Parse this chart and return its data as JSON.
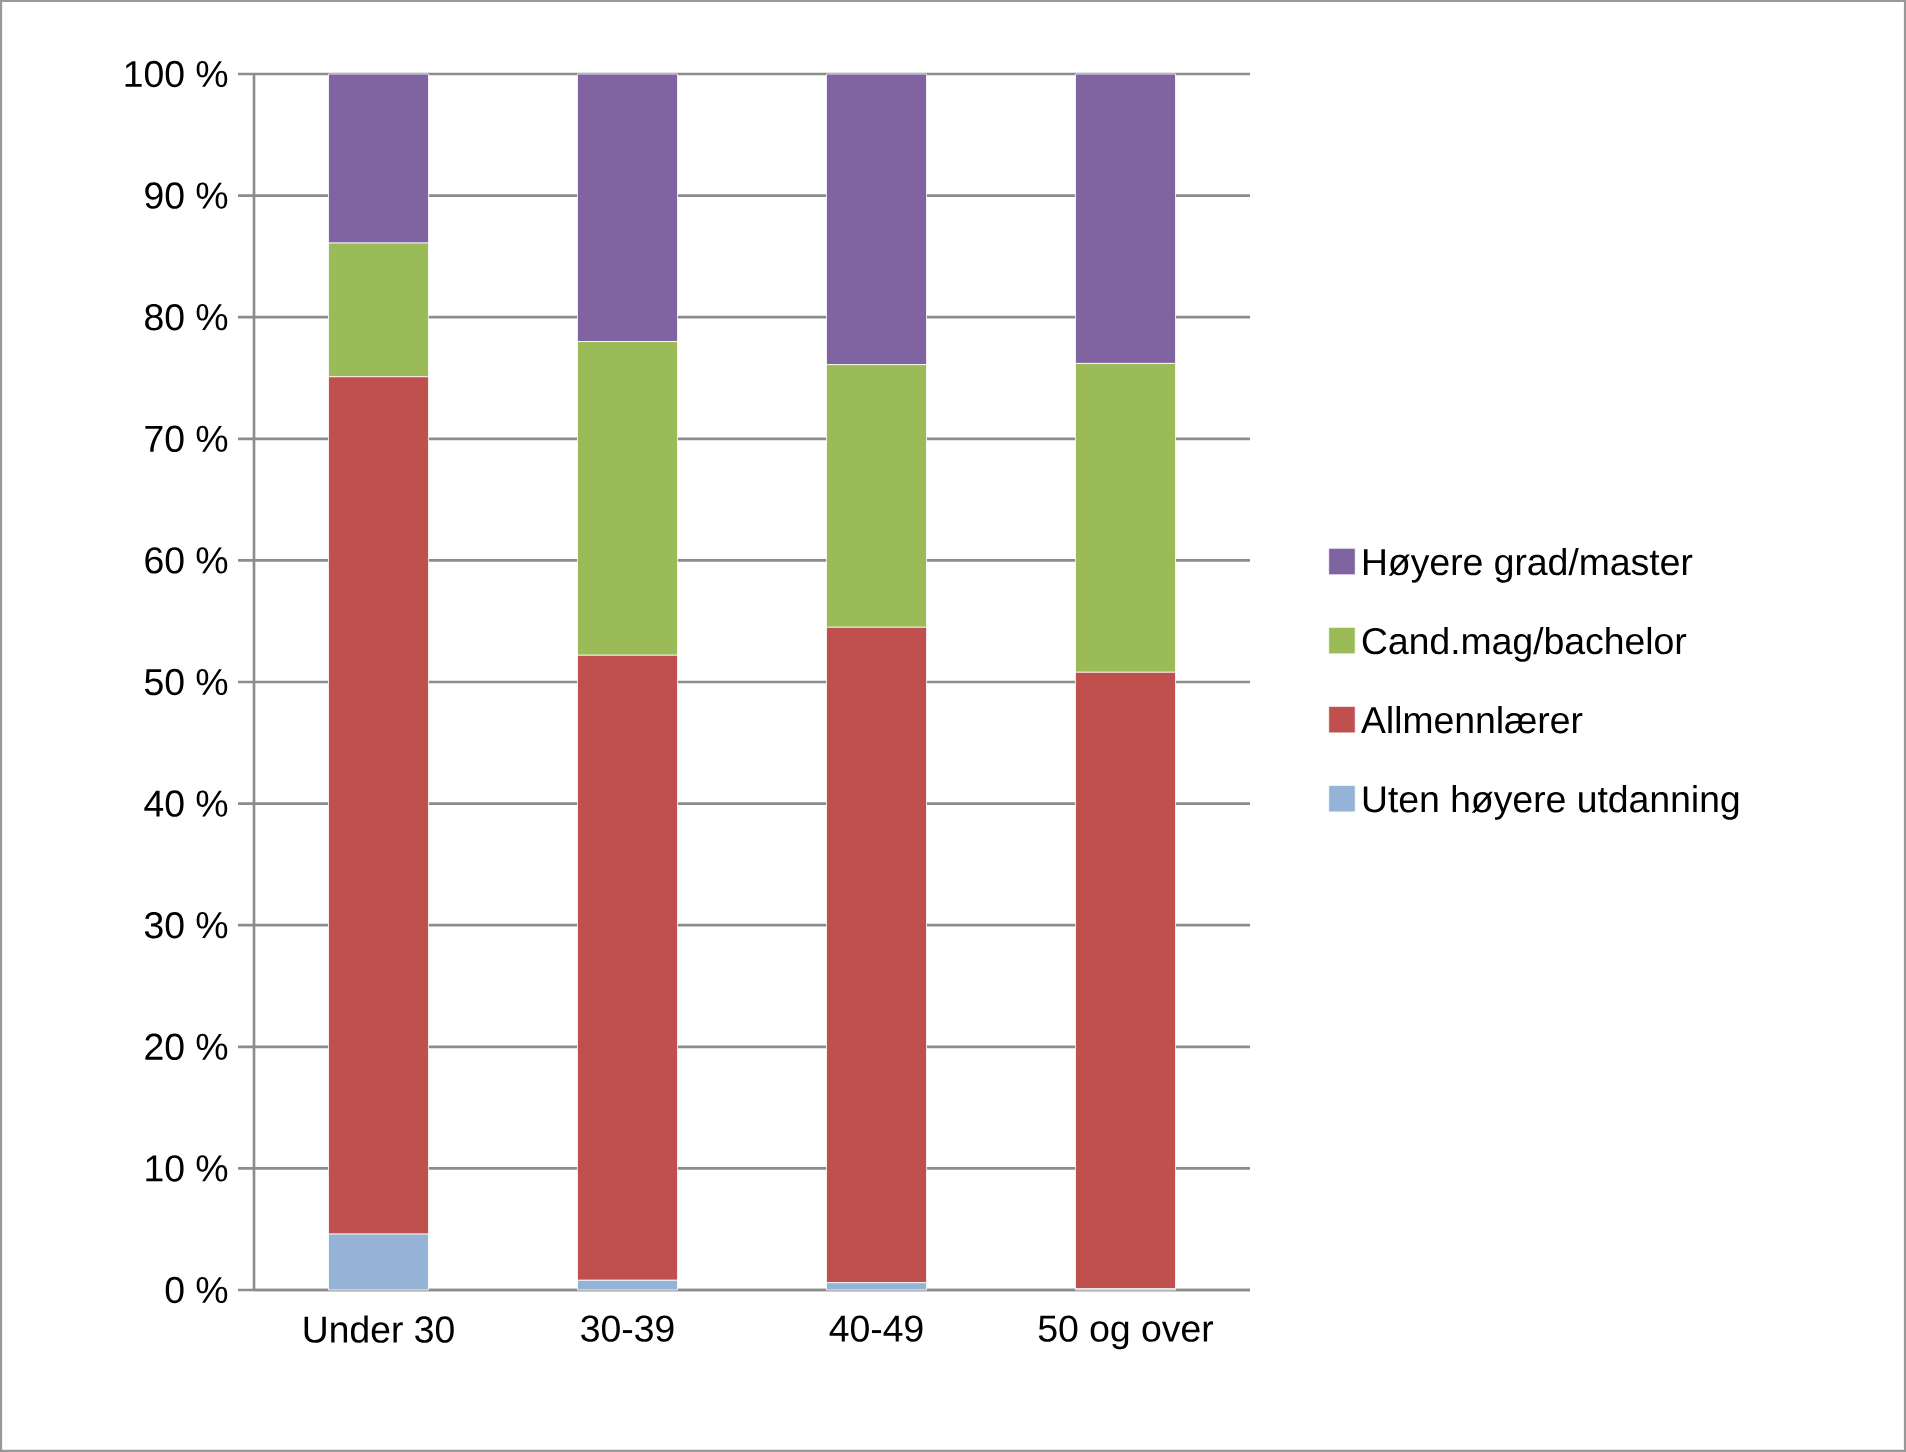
{
  "chart_data": {
    "type": "bar",
    "stacked": true,
    "categories": [
      "Under 30",
      "30-39",
      "40-49",
      "50 og over"
    ],
    "series": [
      {
        "name": "Uten høyere utdanning",
        "color": "#95b3d7",
        "values": [
          4.6,
          0.8,
          0.6,
          0.1
        ]
      },
      {
        "name": "Allmennlærer",
        "color": "#c0504d",
        "values": [
          70.5,
          51.4,
          53.9,
          50.7
        ]
      },
      {
        "name": "Cand.mag/bachelor",
        "color": "#9bbb59",
        "values": [
          11.0,
          25.8,
          21.6,
          25.4
        ]
      },
      {
        "name": "Høyere grad/master",
        "color": "#8064a2",
        "values": [
          13.9,
          22.0,
          23.9,
          23.8
        ]
      }
    ],
    "ylim": [
      0,
      100
    ],
    "yticks": [
      {
        "value": 0,
        "label": "0 %"
      },
      {
        "value": 10,
        "label": "10 %"
      },
      {
        "value": 20,
        "label": "20 %"
      },
      {
        "value": 30,
        "label": "30 %"
      },
      {
        "value": 40,
        "label": "40 %"
      },
      {
        "value": 50,
        "label": "50 %"
      },
      {
        "value": 60,
        "label": "60 %"
      },
      {
        "value": 70,
        "label": "70 %"
      },
      {
        "value": 80,
        "label": "80 %"
      },
      {
        "value": 90,
        "label": "90 %"
      },
      {
        "value": 100,
        "label": "100 %"
      }
    ],
    "grid": "y",
    "legend": "right"
  }
}
